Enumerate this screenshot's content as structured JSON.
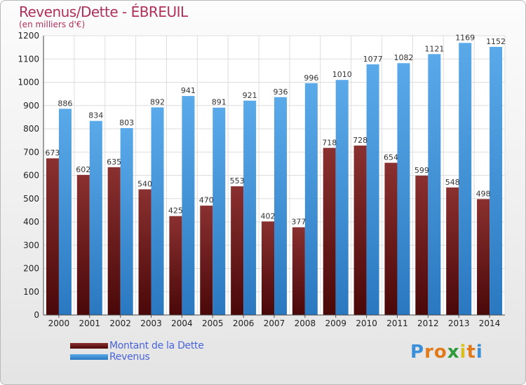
{
  "chart_data": {
    "type": "bar",
    "title": "Revenus/Dette - ÉBREUIL",
    "subtitle": "(en milliers d'€)",
    "categories": [
      "2000",
      "2001",
      "2002",
      "2003",
      "2004",
      "2005",
      "2006",
      "2007",
      "2008",
      "2009",
      "2010",
      "2011",
      "2012",
      "2013",
      "2014"
    ],
    "series": [
      {
        "name": "Montant de la Dette",
        "color": "#7a1c1c",
        "values": [
          673,
          602,
          635,
          540,
          425,
          470,
          553,
          402,
          377,
          718,
          728,
          654,
          599,
          548,
          498
        ]
      },
      {
        "name": "Revenus",
        "color": "#4a9fe2",
        "values": [
          886,
          834,
          803,
          892,
          941,
          891,
          921,
          936,
          996,
          1010,
          1077,
          1082,
          1121,
          1169,
          1152
        ]
      }
    ],
    "ylim": [
      0,
      1200
    ],
    "yticks": [
      0,
      100,
      200,
      300,
      400,
      500,
      600,
      700,
      800,
      900,
      1000,
      1100,
      1200
    ],
    "grid": true,
    "legend_position": "bottom-left"
  },
  "logo": {
    "letters": [
      "P",
      "r",
      "o",
      "x",
      "i",
      "t",
      "i"
    ],
    "colors": [
      "#3a8fd8",
      "#e07a1a",
      "#e07a1a",
      "#2e9a3a",
      "#d8c020",
      "#e07a1a",
      "#3a8fd8"
    ]
  }
}
